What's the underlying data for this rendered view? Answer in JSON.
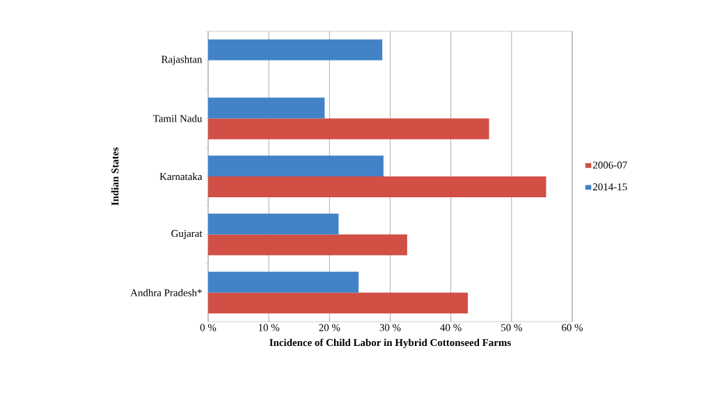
{
  "chart_data": {
    "type": "bar",
    "orientation": "horizontal",
    "categories": [
      "Rajashtan",
      "Tamil Nadu",
      "Karnataka",
      "Gujarat",
      "Andhra Pradesh*"
    ],
    "series": [
      {
        "name": "2006-07",
        "color": "#d14f45",
        "values": [
          null,
          46.3,
          55.7,
          32.8,
          42.8
        ]
      },
      {
        "name": "2014-15",
        "color": "#4283c8",
        "values": [
          28.7,
          19.2,
          28.9,
          21.5,
          24.8
        ]
      }
    ],
    "xlabel": "Incidence of Child Labor in Hybrid Cottonseed Farms",
    "ylabel": "Indian States",
    "xlim": [
      0,
      60
    ],
    "xticks": [
      {
        "value": 0,
        "label": "0 %"
      },
      {
        "value": 10,
        "label": "10 %"
      },
      {
        "value": 20,
        "label": "20 %"
      },
      {
        "value": 30,
        "label": "30 %"
      },
      {
        "value": 40,
        "label": "40 %"
      },
      {
        "value": 50,
        "label": "50 %"
      },
      {
        "value": 60,
        "label": "60 %"
      }
    ],
    "grid": "x",
    "legend": "right"
  }
}
